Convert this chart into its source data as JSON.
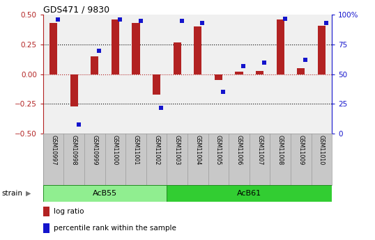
{
  "title": "GDS471 / 9830",
  "samples": [
    "GSM10997",
    "GSM10998",
    "GSM10999",
    "GSM11000",
    "GSM11001",
    "GSM11002",
    "GSM11003",
    "GSM11004",
    "GSM11005",
    "GSM11006",
    "GSM11007",
    "GSM11008",
    "GSM11009",
    "GSM11010"
  ],
  "log_ratio": [
    0.43,
    -0.27,
    0.15,
    0.46,
    0.43,
    -0.17,
    0.27,
    0.4,
    -0.05,
    0.02,
    0.03,
    0.46,
    0.05,
    0.41
  ],
  "percentile": [
    96,
    8,
    70,
    96,
    95,
    22,
    95,
    93,
    35,
    57,
    60,
    97,
    62,
    93
  ],
  "groups": [
    {
      "label": "AcB55",
      "start": 0,
      "end": 6,
      "color": "#90EE90"
    },
    {
      "label": "AcB61",
      "start": 6,
      "end": 14,
      "color": "#32CD32"
    }
  ],
  "group_label": "strain",
  "bar_color": "#B22222",
  "dot_color": "#1414CC",
  "ylim_left": [
    -0.5,
    0.5
  ],
  "ylim_right": [
    0,
    100
  ],
  "yticks_left": [
    -0.5,
    -0.25,
    0.0,
    0.25,
    0.5
  ],
  "yticks_right": [
    0,
    25,
    50,
    75,
    100
  ],
  "dotted_lines": [
    -0.25,
    0.25
  ],
  "plot_bg_color": "#F0F0F0",
  "tick_bg_color": "#C8C8C8",
  "legend_items": [
    {
      "label": "log ratio",
      "color": "#B22222"
    },
    {
      "label": "percentile rank within the sample",
      "color": "#1414CC"
    }
  ]
}
